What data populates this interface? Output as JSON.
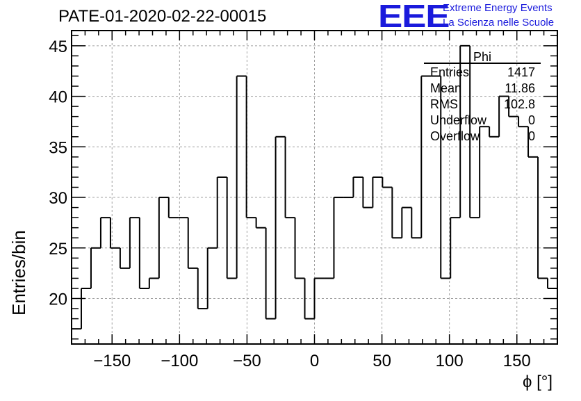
{
  "header": {
    "run_title": "PATE-01-2020-02-22-00015",
    "logo_text": "EEE",
    "logo_line1": "Extreme Energy Events",
    "logo_line2": "La Scienza nelle Scuole",
    "brand_color": "#1a1adc"
  },
  "stats_box": {
    "title": "Phi",
    "rows": [
      {
        "label": "Entries",
        "value": "1417"
      },
      {
        "label": "Mean",
        "value": "11.86"
      },
      {
        "label": "RMS",
        "value": "102.8"
      },
      {
        "label": "Underflow",
        "value": "0"
      },
      {
        "label": "Overflow",
        "value": "0"
      }
    ]
  },
  "chart_data": {
    "type": "histogram",
    "xlabel": "ϕ [°]",
    "ylabel": "Entries/bin",
    "xlim": [
      -180,
      180
    ],
    "ylim": [
      15.5,
      46.5
    ],
    "bin_width": 7.2,
    "x_ticks": [
      -150,
      -100,
      -50,
      0,
      50,
      100,
      150
    ],
    "y_ticks": [
      20,
      25,
      30,
      35,
      40,
      45
    ],
    "grid": true,
    "line_color": "#000000",
    "values": [
      17,
      21,
      25,
      28,
      25,
      23,
      28,
      21,
      22,
      30,
      28,
      28,
      23,
      19,
      25,
      32,
      22,
      42,
      28,
      27,
      18,
      36,
      28,
      22,
      18,
      22,
      22,
      30,
      30,
      32,
      29,
      32,
      31,
      26,
      29,
      26,
      42,
      42,
      22,
      28,
      45,
      28,
      37,
      36,
      40,
      38,
      37,
      34,
      22,
      21
    ]
  }
}
